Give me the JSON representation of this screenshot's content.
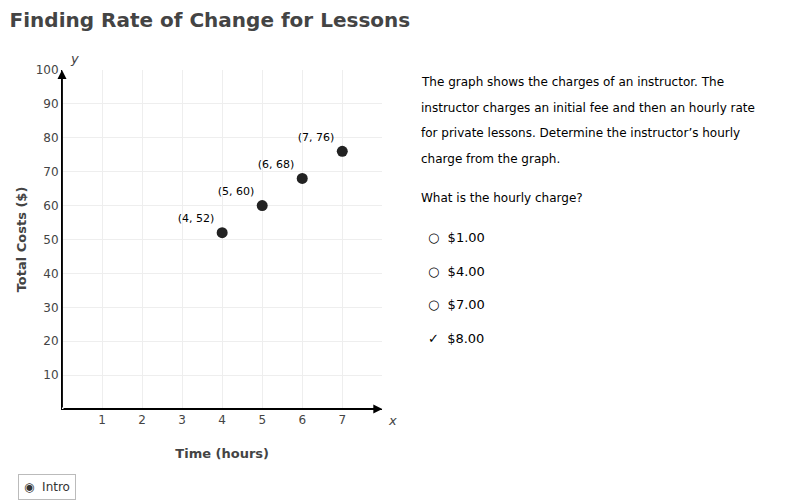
{
  "chart_data": {
    "type": "scatter",
    "title": "Finding Rate of Change for Lessons",
    "x": [
      4,
      5,
      6,
      7
    ],
    "values": [
      52,
      60,
      68,
      76
    ],
    "value_labels": [
      "(4, 52)",
      "(5, 60)",
      "(6, 68)",
      "(7, 76)"
    ],
    "data_labels": true,
    "color": "#222222",
    "xlabel": "Time (hours)",
    "ylabel": "Total Costs ($)",
    "xlim": [
      0,
      8
    ],
    "ylim": [
      0,
      100
    ],
    "xticks": [
      1,
      2,
      3,
      4,
      5,
      6,
      7
    ],
    "yticks": [
      10,
      20,
      30,
      40,
      50,
      60,
      70,
      80,
      90,
      100
    ],
    "grid": true,
    "annotations": [
      [
        "x",
        "y"
      ],
      [
        "The graph shows the charges of an instructor. The",
        "instructor charges an initial fee and then an hourly rate",
        "for private lessons. Determine the instructor’s hourly",
        "charge from the graph."
      ],
      [
        "What is the hourly charge?"
      ],
      [
        "○  $1.00",
        "○  $4.00",
        "○  $7.00",
        "✓  $8.00"
      ],
      [
        "◉  Intro"
      ]
    ]
  }
}
